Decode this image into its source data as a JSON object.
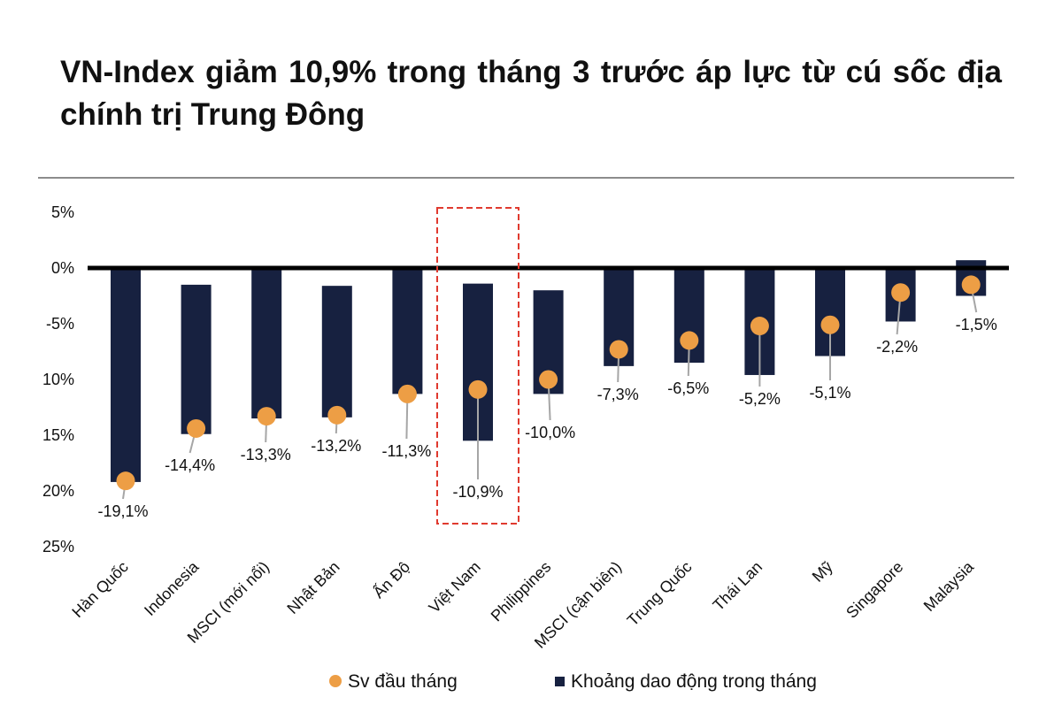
{
  "chart_data": {
    "type": "bar",
    "title": "VN-Index giảm 10,9% trong tháng 3 trước áp lực từ cú sốc địa chính trị Trung Đông",
    "xlabel": "",
    "ylabel": "",
    "ylim": [
      -25,
      5
    ],
    "yticks": [
      {
        "value": 5,
        "label": "5%"
      },
      {
        "value": 0,
        "label": "0%"
      },
      {
        "value": -5,
        "label": "-5%"
      },
      {
        "value": -10,
        "label": "10%"
      },
      {
        "value": -15,
        "label": "15%"
      },
      {
        "value": -20,
        "label": "20%"
      },
      {
        "value": -25,
        "label": "25%"
      }
    ],
    "grid": false,
    "legend_position": "bottom",
    "highlight_category": "Việt Nam",
    "categories": [
      "Hàn Quốc",
      "Indonesia",
      "MSCI (mới nổi)",
      "Nhật Bản",
      "Ấn Độ",
      "Việt Nam",
      "Philippines",
      "MSCI (cận biên)",
      "Trung Quốc",
      "Thái Lan",
      "Mỹ",
      "Singapore",
      "Malaysia"
    ],
    "series": [
      {
        "name": "Sv đầu tháng",
        "kind": "point",
        "color": "#ed9e45",
        "values": [
          -19.1,
          -14.4,
          -13.3,
          -13.2,
          -11.3,
          -10.9,
          -10.0,
          -7.3,
          -6.5,
          -5.2,
          -5.1,
          -2.2,
          -1.5
        ],
        "labels": [
          "-19,1%",
          "-14,4%",
          "-13,3%",
          "-13,2%",
          "-11,3%",
          "-10,9%",
          "-10,0%",
          "-7,3%",
          "-6,5%",
          "-5,2%",
          "-5,1%",
          "-2,2%",
          "-1,5%"
        ]
      },
      {
        "name": "Khoảng dao động trong tháng",
        "kind": "range-bar",
        "color": "#172140",
        "ranges": [
          [
            0,
            -19.2
          ],
          [
            -1.5,
            -14.9
          ],
          [
            0,
            -13.5
          ],
          [
            -1.6,
            -13.4
          ],
          [
            0,
            -11.3
          ],
          [
            -1.4,
            -15.5
          ],
          [
            -2.0,
            -11.3
          ],
          [
            0,
            -8.8
          ],
          [
            0,
            -8.5
          ],
          [
            0,
            -9.6
          ],
          [
            0,
            -7.9
          ],
          [
            0.1,
            -4.8
          ],
          [
            0.7,
            -2.5
          ]
        ]
      }
    ]
  },
  "colors": {
    "bar": "#172140",
    "point": "#ed9e45",
    "highlight_box": "#e03a2f",
    "leader": "#a6a6a6",
    "zero_line": "#000000"
  }
}
